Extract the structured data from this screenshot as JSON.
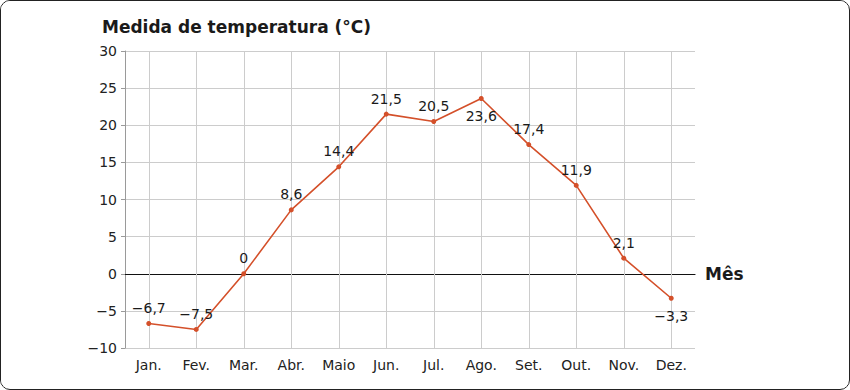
{
  "chart_data": {
    "type": "line",
    "title": "Medida de temperatura (°C)",
    "x_label": "Mês",
    "categories": [
      "Jan.",
      "Fev.",
      "Mar.",
      "Abr.",
      "Maio",
      "Jun.",
      "Jul.",
      "Ago.",
      "Set.",
      "Out.",
      "Nov.",
      "Dez."
    ],
    "values": [
      -6.7,
      -7.5,
      0,
      8.6,
      14.4,
      21.5,
      20.5,
      23.6,
      17.4,
      11.9,
      2.1,
      -3.3
    ],
    "value_labels": [
      "−6,7",
      "−7,5",
      "0",
      "8,6",
      "14,4",
      "21,5",
      "20,5",
      "23,6",
      "17,4",
      "11,9",
      "2,1",
      "−3,3"
    ],
    "color": "#d4502a",
    "marker": "circle",
    "ylim": [
      -10,
      30
    ],
    "yticks": [
      {
        "value": -10,
        "label": "−10"
      },
      {
        "value": -5,
        "label": "−5"
      },
      0,
      5,
      10,
      15,
      20,
      25,
      30
    ],
    "grid": true,
    "data_labels": true
  }
}
